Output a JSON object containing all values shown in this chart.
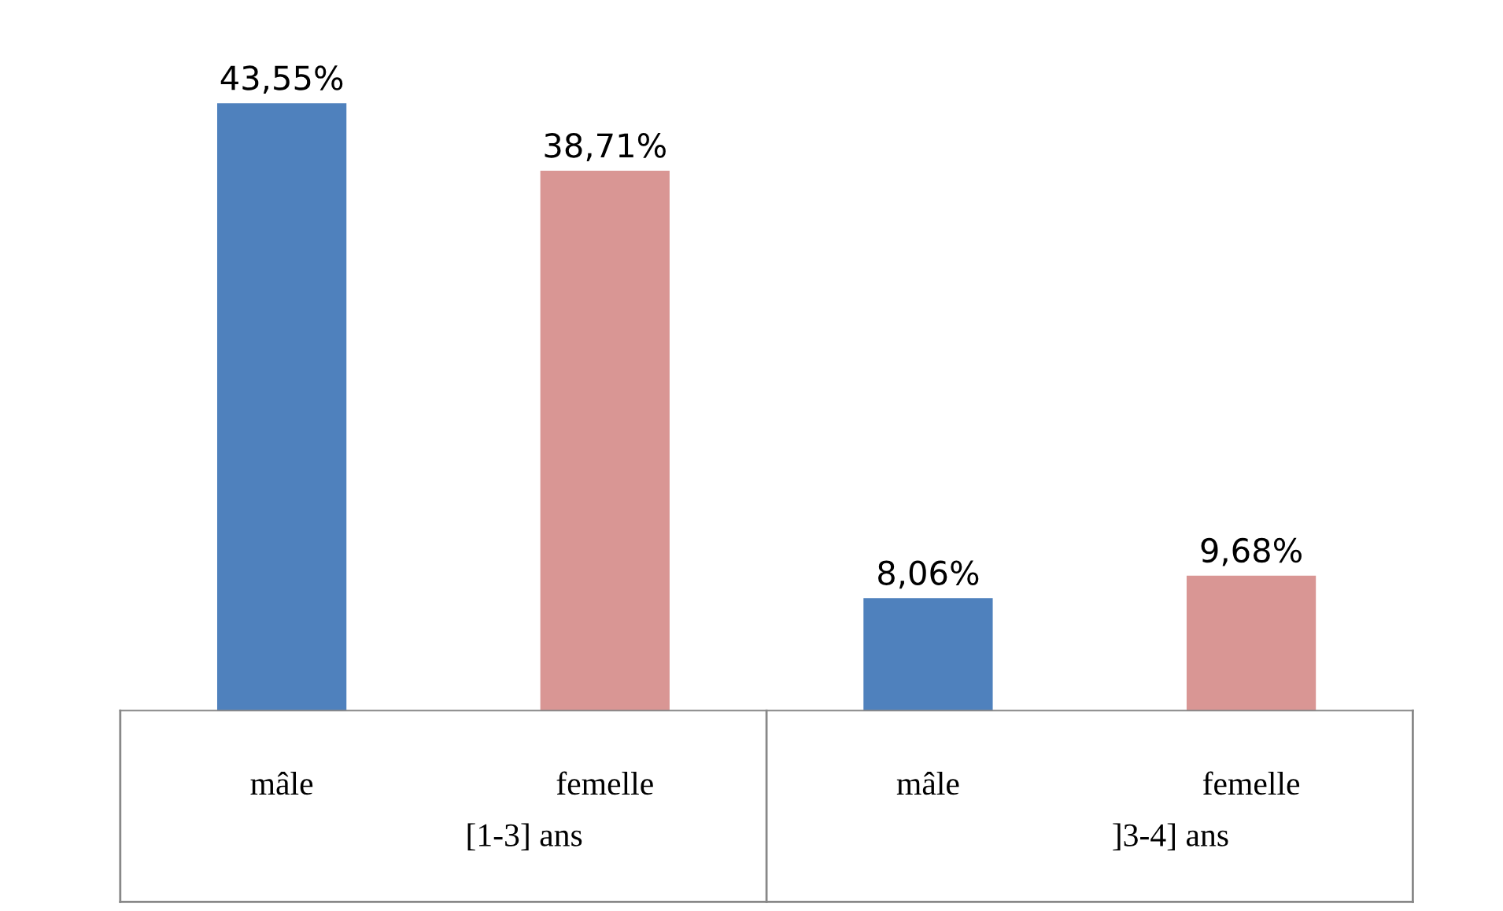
{
  "chart_data": {
    "type": "bar",
    "categories": [
      "mâle",
      "femelle",
      "mâle",
      "femelle"
    ],
    "values": [
      43.55,
      38.71,
      8.06,
      9.68
    ],
    "colors": [
      "#4f81bd",
      "#d99694",
      "#4f81bd",
      "#d99694"
    ],
    "value_labels": [
      "43,55%",
      "38,71%",
      "8,06%",
      "9,68%"
    ],
    "annotations": [
      "[1-3] ans",
      "]3-4] ans"
    ]
  }
}
